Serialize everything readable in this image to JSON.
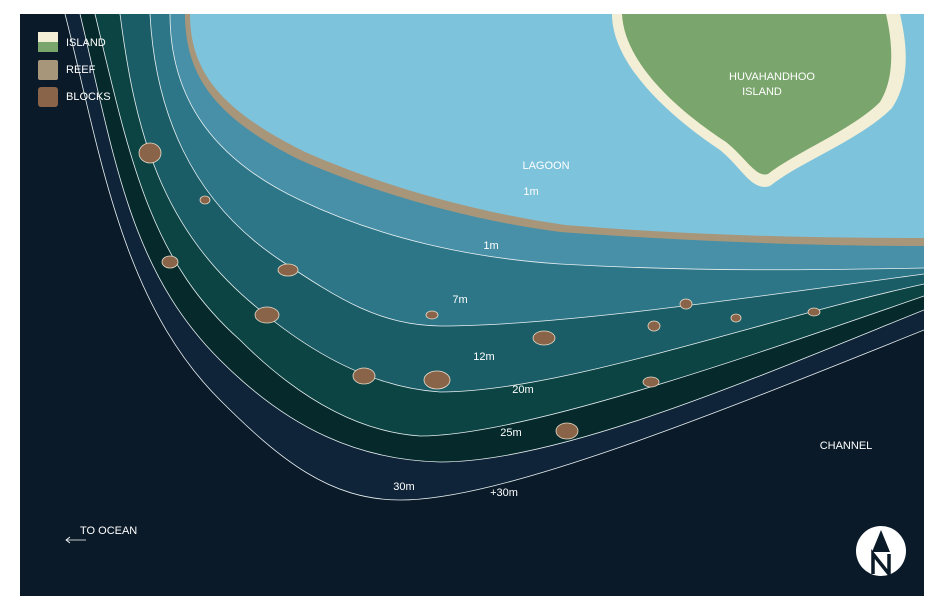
{
  "legend": [
    "ISLAND",
    "REEF",
    "BLOCKS"
  ],
  "island_name": [
    "HUVAHANDHOO",
    "ISLAND"
  ],
  "areas": {
    "lagoon": "LAGOON",
    "channel": "CHANNEL",
    "to_ocean": "TO OCEAN"
  },
  "depths": {
    "lagoon": "1m",
    "band_1": "1m",
    "band_7": "7m",
    "band_12": "12m",
    "band_20": "20m",
    "band_25": "25m",
    "band_30": "30m",
    "band_30_plus": "+30m"
  }
}
